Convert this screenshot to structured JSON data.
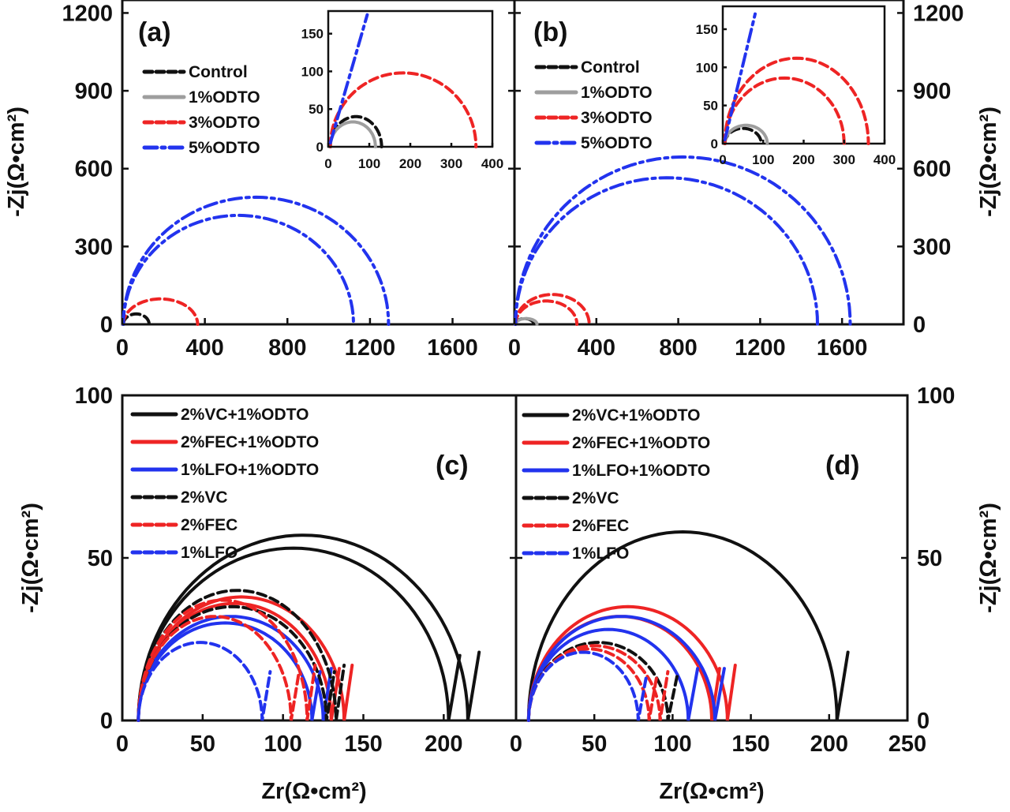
{
  "colors": {
    "black": "#111111",
    "gray": "#9e9e9e",
    "red": "#ee2424",
    "blue": "#2233ee"
  },
  "chart_data": [
    {
      "type": "line",
      "panel": "(a)",
      "xlim": [
        0,
        1900
      ],
      "ylim": [
        0,
        1250
      ],
      "xticks": [
        "0",
        "400",
        "800",
        "1200",
        "1600"
      ],
      "xtick_values": [
        0,
        400,
        800,
        1200,
        1600
      ],
      "yticks": [
        "0",
        "300",
        "600",
        "900",
        "1200"
      ],
      "ytick_values": [
        0,
        300,
        600,
        900,
        1200
      ],
      "ylabel": "-Zj(Ω•cm²)",
      "xlabel": "",
      "legend": [
        {
          "label": "Control",
          "color": "black",
          "dash": "dash"
        },
        {
          "label": "1%ODTO",
          "color": "gray",
          "dash": "solid"
        },
        {
          "label": "3%ODTO",
          "color": "red",
          "dash": "dash"
        },
        {
          "label": "5%ODTO",
          "color": "blue",
          "dash": "dashdot"
        }
      ],
      "series": [
        {
          "name": "Control",
          "color": "black",
          "dash": "dash",
          "arcs": [
            {
              "x0": 5,
              "x1": 130,
              "h": 40
            }
          ]
        },
        {
          "name": "3%ODTO",
          "color": "red",
          "dash": "dash",
          "arcs": [
            {
              "x0": 5,
              "x1": 365,
              "h": 98
            }
          ]
        },
        {
          "name": "5%ODTO",
          "color": "blue",
          "dash": "dashdot",
          "arcs": [
            {
              "x0": 5,
              "x1": 1290,
              "h": 490
            },
            {
              "x0": 5,
              "x1": 1120,
              "h": 420
            }
          ]
        }
      ],
      "inset": {
        "xlim": [
          0,
          400
        ],
        "ylim": [
          0,
          180
        ],
        "xticks": [
          "0",
          "100",
          "200",
          "300",
          "400"
        ],
        "xtick_values": [
          0,
          100,
          200,
          300,
          400
        ],
        "yticks": [
          "0",
          "50",
          "100",
          "150"
        ],
        "ytick_values": [
          0,
          50,
          100,
          150
        ],
        "series": [
          {
            "name": "Control",
            "color": "black",
            "dash": "dash",
            "arcs": [
              {
                "x0": 5,
                "x1": 130,
                "h": 40
              }
            ]
          },
          {
            "name": "1%ODTO",
            "color": "gray",
            "dash": "solid",
            "arcs": [
              {
                "x0": 5,
                "x1": 115,
                "h": 33
              }
            ]
          },
          {
            "name": "3%ODTO",
            "color": "red",
            "dash": "dash",
            "arcs": [
              {
                "x0": 5,
                "x1": 360,
                "h": 98
              }
            ]
          },
          {
            "name": "5%ODTO",
            "color": "blue",
            "dash": "dashdot",
            "lines": [
              [
                [
                  5,
                  5
                ],
                [
                  95,
                  175
                ]
              ]
            ]
          }
        ]
      }
    },
    {
      "type": "line",
      "panel": "(b)",
      "xlim": [
        0,
        1900
      ],
      "ylim": [
        0,
        1250
      ],
      "xticks": [
        "0",
        "400",
        "800",
        "1200",
        "1600"
      ],
      "xtick_values": [
        0,
        400,
        800,
        1200,
        1600
      ],
      "yticks": [
        "0",
        "300",
        "600",
        "900",
        "1200"
      ],
      "ytick_values": [
        0,
        300,
        600,
        900,
        1200
      ],
      "ylabel": "-Zj(Ω•cm²)",
      "xlabel": "",
      "legend": [
        {
          "label": "Control",
          "color": "black",
          "dash": "dash"
        },
        {
          "label": "1%ODTO",
          "color": "gray",
          "dash": "solid"
        },
        {
          "label": "3%ODTO",
          "color": "red",
          "dash": "dash"
        },
        {
          "label": "5%ODTO",
          "color": "blue",
          "dash": "dashdot"
        }
      ],
      "series": [
        {
          "name": "Control",
          "color": "black",
          "dash": "dash",
          "arcs": [
            {
              "x0": 5,
              "x1": 95,
              "h": 22
            }
          ]
        },
        {
          "name": "1%ODTO",
          "color": "gray",
          "dash": "solid",
          "arcs": [
            {
              "x0": 5,
              "x1": 110,
              "h": 22
            }
          ]
        },
        {
          "name": "3%ODTO",
          "color": "red",
          "dash": "dash",
          "arcs": [
            {
              "x0": 5,
              "x1": 365,
              "h": 115
            },
            {
              "x0": 5,
              "x1": 305,
              "h": 90
            }
          ]
        },
        {
          "name": "5%ODTO",
          "color": "blue",
          "dash": "dashdot",
          "arcs": [
            {
              "x0": 5,
              "x1": 1640,
              "h": 645
            },
            {
              "x0": 5,
              "x1": 1480,
              "h": 565
            }
          ]
        }
      ],
      "inset": {
        "xlim": [
          0,
          400
        ],
        "ylim": [
          0,
          180
        ],
        "xticks": [
          "0",
          "100",
          "200",
          "300",
          "400"
        ],
        "xtick_values": [
          0,
          100,
          200,
          300,
          400
        ],
        "yticks": [
          "0",
          "50",
          "100",
          "150"
        ],
        "ytick_values": [
          0,
          50,
          100,
          150
        ],
        "series": [
          {
            "name": "Control",
            "color": "black",
            "dash": "dash",
            "arcs": [
              {
                "x0": 5,
                "x1": 95,
                "h": 20
              }
            ]
          },
          {
            "name": "1%ODTO",
            "color": "gray",
            "dash": "solid",
            "arcs": [
              {
                "x0": 5,
                "x1": 110,
                "h": 24
              }
            ]
          },
          {
            "name": "3%ODTO",
            "color": "red",
            "dash": "dash",
            "arcs": [
              {
                "x0": 5,
                "x1": 360,
                "h": 112
              },
              {
                "x0": 5,
                "x1": 300,
                "h": 86
              }
            ]
          },
          {
            "name": "5%ODTO",
            "color": "blue",
            "dash": "dashdot",
            "lines": [
              [
                [
                  5,
                  5
                ],
                [
                  80,
                  170
                ]
              ]
            ]
          }
        ]
      }
    },
    {
      "type": "line",
      "panel": "(c)",
      "xlim": [
        0,
        245
      ],
      "ylim": [
        0,
        100
      ],
      "xticks": [
        "0",
        "50",
        "100",
        "150",
        "200"
      ],
      "xtick_values": [
        0,
        50,
        100,
        150,
        200
      ],
      "yticks": [
        "0",
        "50",
        "100"
      ],
      "ytick_values": [
        0,
        50,
        100
      ],
      "ylabel": "-Zj(Ω•cm²)",
      "xlabel": "Zr(Ω•cm²)",
      "legend": [
        {
          "label": "2%VC+1%ODTO",
          "color": "black",
          "dash": "solid"
        },
        {
          "label": "2%FEC+1%ODTO",
          "color": "red",
          "dash": "solid"
        },
        {
          "label": "1%LFO+1%ODTO",
          "color": "blue",
          "dash": "solid"
        },
        {
          "label": "2%VC",
          "color": "black",
          "dash": "dash"
        },
        {
          "label": "2%FEC",
          "color": "red",
          "dash": "dash"
        },
        {
          "label": "1%LFO",
          "color": "blue",
          "dash": "dash"
        }
      ],
      "series": [
        {
          "name": "2%VC+1%ODTO",
          "color": "black",
          "dash": "solid",
          "arcs": [
            {
              "x0": 10,
              "x1": 215,
              "h": 57,
              "tail": [
                222,
                21
              ]
            },
            {
              "x0": 10,
              "x1": 203,
              "h": 53,
              "tail": [
                210,
                20
              ]
            }
          ]
        },
        {
          "name": "2%FEC+1%ODTO",
          "color": "red",
          "dash": "solid",
          "arcs": [
            {
              "x0": 10,
              "x1": 138,
              "h": 38,
              "tail": [
                143,
                17
              ]
            },
            {
              "x0": 10,
              "x1": 130,
              "h": 36,
              "tail": [
                135,
                16
              ]
            }
          ]
        },
        {
          "name": "1%LFO+1%ODTO",
          "color": "blue",
          "dash": "solid",
          "arcs": [
            {
              "x0": 10,
              "x1": 125,
              "h": 32,
              "tail": [
                130,
                16
              ]
            },
            {
              "x0": 10,
              "x1": 118,
              "h": 30,
              "tail": [
                123,
                15
              ]
            }
          ]
        },
        {
          "name": "2%VC",
          "color": "black",
          "dash": "dash",
          "arcs": [
            {
              "x0": 10,
              "x1": 133,
              "h": 40,
              "tail": [
                138,
                17
              ]
            },
            {
              "x0": 10,
              "x1": 127,
              "h": 35,
              "tail": [
                132,
                15
              ]
            }
          ]
        },
        {
          "name": "2%FEC",
          "color": "red",
          "dash": "dash",
          "arcs": [
            {
              "x0": 10,
              "x1": 115,
              "h": 37,
              "tail": [
                120,
                17
              ]
            },
            {
              "x0": 10,
              "x1": 105,
              "h": 32,
              "tail": [
                110,
                15
              ]
            }
          ]
        },
        {
          "name": "1%LFO",
          "color": "blue",
          "dash": "dash",
          "arcs": [
            {
              "x0": 10,
              "x1": 87,
              "h": 24,
              "tail": [
                92,
                15
              ]
            }
          ]
        }
      ]
    },
    {
      "type": "line",
      "panel": "(d)",
      "xlim": [
        0,
        250
      ],
      "ylim": [
        0,
        100
      ],
      "xticks": [
        "0",
        "50",
        "100",
        "150",
        "200",
        "250"
      ],
      "xtick_values": [
        0,
        50,
        100,
        150,
        200,
        250
      ],
      "yticks": [
        "0",
        "50",
        "100"
      ],
      "ytick_values": [
        0,
        50,
        100
      ],
      "ylabel": "-Zj(Ω•cm²)",
      "xlabel": "Zr(Ω•cm²)",
      "legend": [
        {
          "label": "2%VC+1%ODTO",
          "color": "black",
          "dash": "solid"
        },
        {
          "label": "2%FEC+1%ODTO",
          "color": "red",
          "dash": "solid"
        },
        {
          "label": "1%LFO+1%ODTO",
          "color": "blue",
          "dash": "solid"
        },
        {
          "label": "2%VC",
          "color": "black",
          "dash": "dash"
        },
        {
          "label": "2%FEC",
          "color": "red",
          "dash": "dash"
        },
        {
          "label": "1%LFO",
          "color": "blue",
          "dash": "dash"
        }
      ],
      "series": [
        {
          "name": "2%VC+1%ODTO",
          "color": "black",
          "dash": "solid",
          "arcs": [
            {
              "x0": 8,
              "x1": 205,
              "h": 58,
              "tail": [
                212,
                21
              ]
            }
          ]
        },
        {
          "name": "2%FEC+1%ODTO",
          "color": "red",
          "dash": "solid",
          "arcs": [
            {
              "x0": 8,
              "x1": 135,
              "h": 35,
              "tail": [
                140,
                17
              ]
            },
            {
              "x0": 8,
              "x1": 125,
              "h": 32,
              "tail": [
                130,
                16
              ]
            }
          ]
        },
        {
          "name": "1%LFO+1%ODTO",
          "color": "blue",
          "dash": "solid",
          "arcs": [
            {
              "x0": 8,
              "x1": 127,
              "h": 32,
              "tail": [
                133,
                16
              ]
            },
            {
              "x0": 8,
              "x1": 110,
              "h": 28,
              "tail": [
                116,
                16
              ]
            }
          ]
        },
        {
          "name": "2%VC",
          "color": "black",
          "dash": "dash",
          "arcs": [
            {
              "x0": 8,
              "x1": 97,
              "h": 24,
              "tail": [
                103,
                14
              ]
            }
          ]
        },
        {
          "name": "2%FEC",
          "color": "red",
          "dash": "dash",
          "arcs": [
            {
              "x0": 8,
              "x1": 92,
              "h": 23,
              "tail": [
                97,
                15
              ]
            },
            {
              "x0": 8,
              "x1": 85,
              "h": 22,
              "tail": [
                90,
                14
              ]
            }
          ]
        },
        {
          "name": "1%LFO",
          "color": "blue",
          "dash": "dash",
          "arcs": [
            {
              "x0": 8,
              "x1": 78,
              "h": 21,
              "tail": [
                83,
                13
              ]
            }
          ]
        }
      ]
    }
  ]
}
